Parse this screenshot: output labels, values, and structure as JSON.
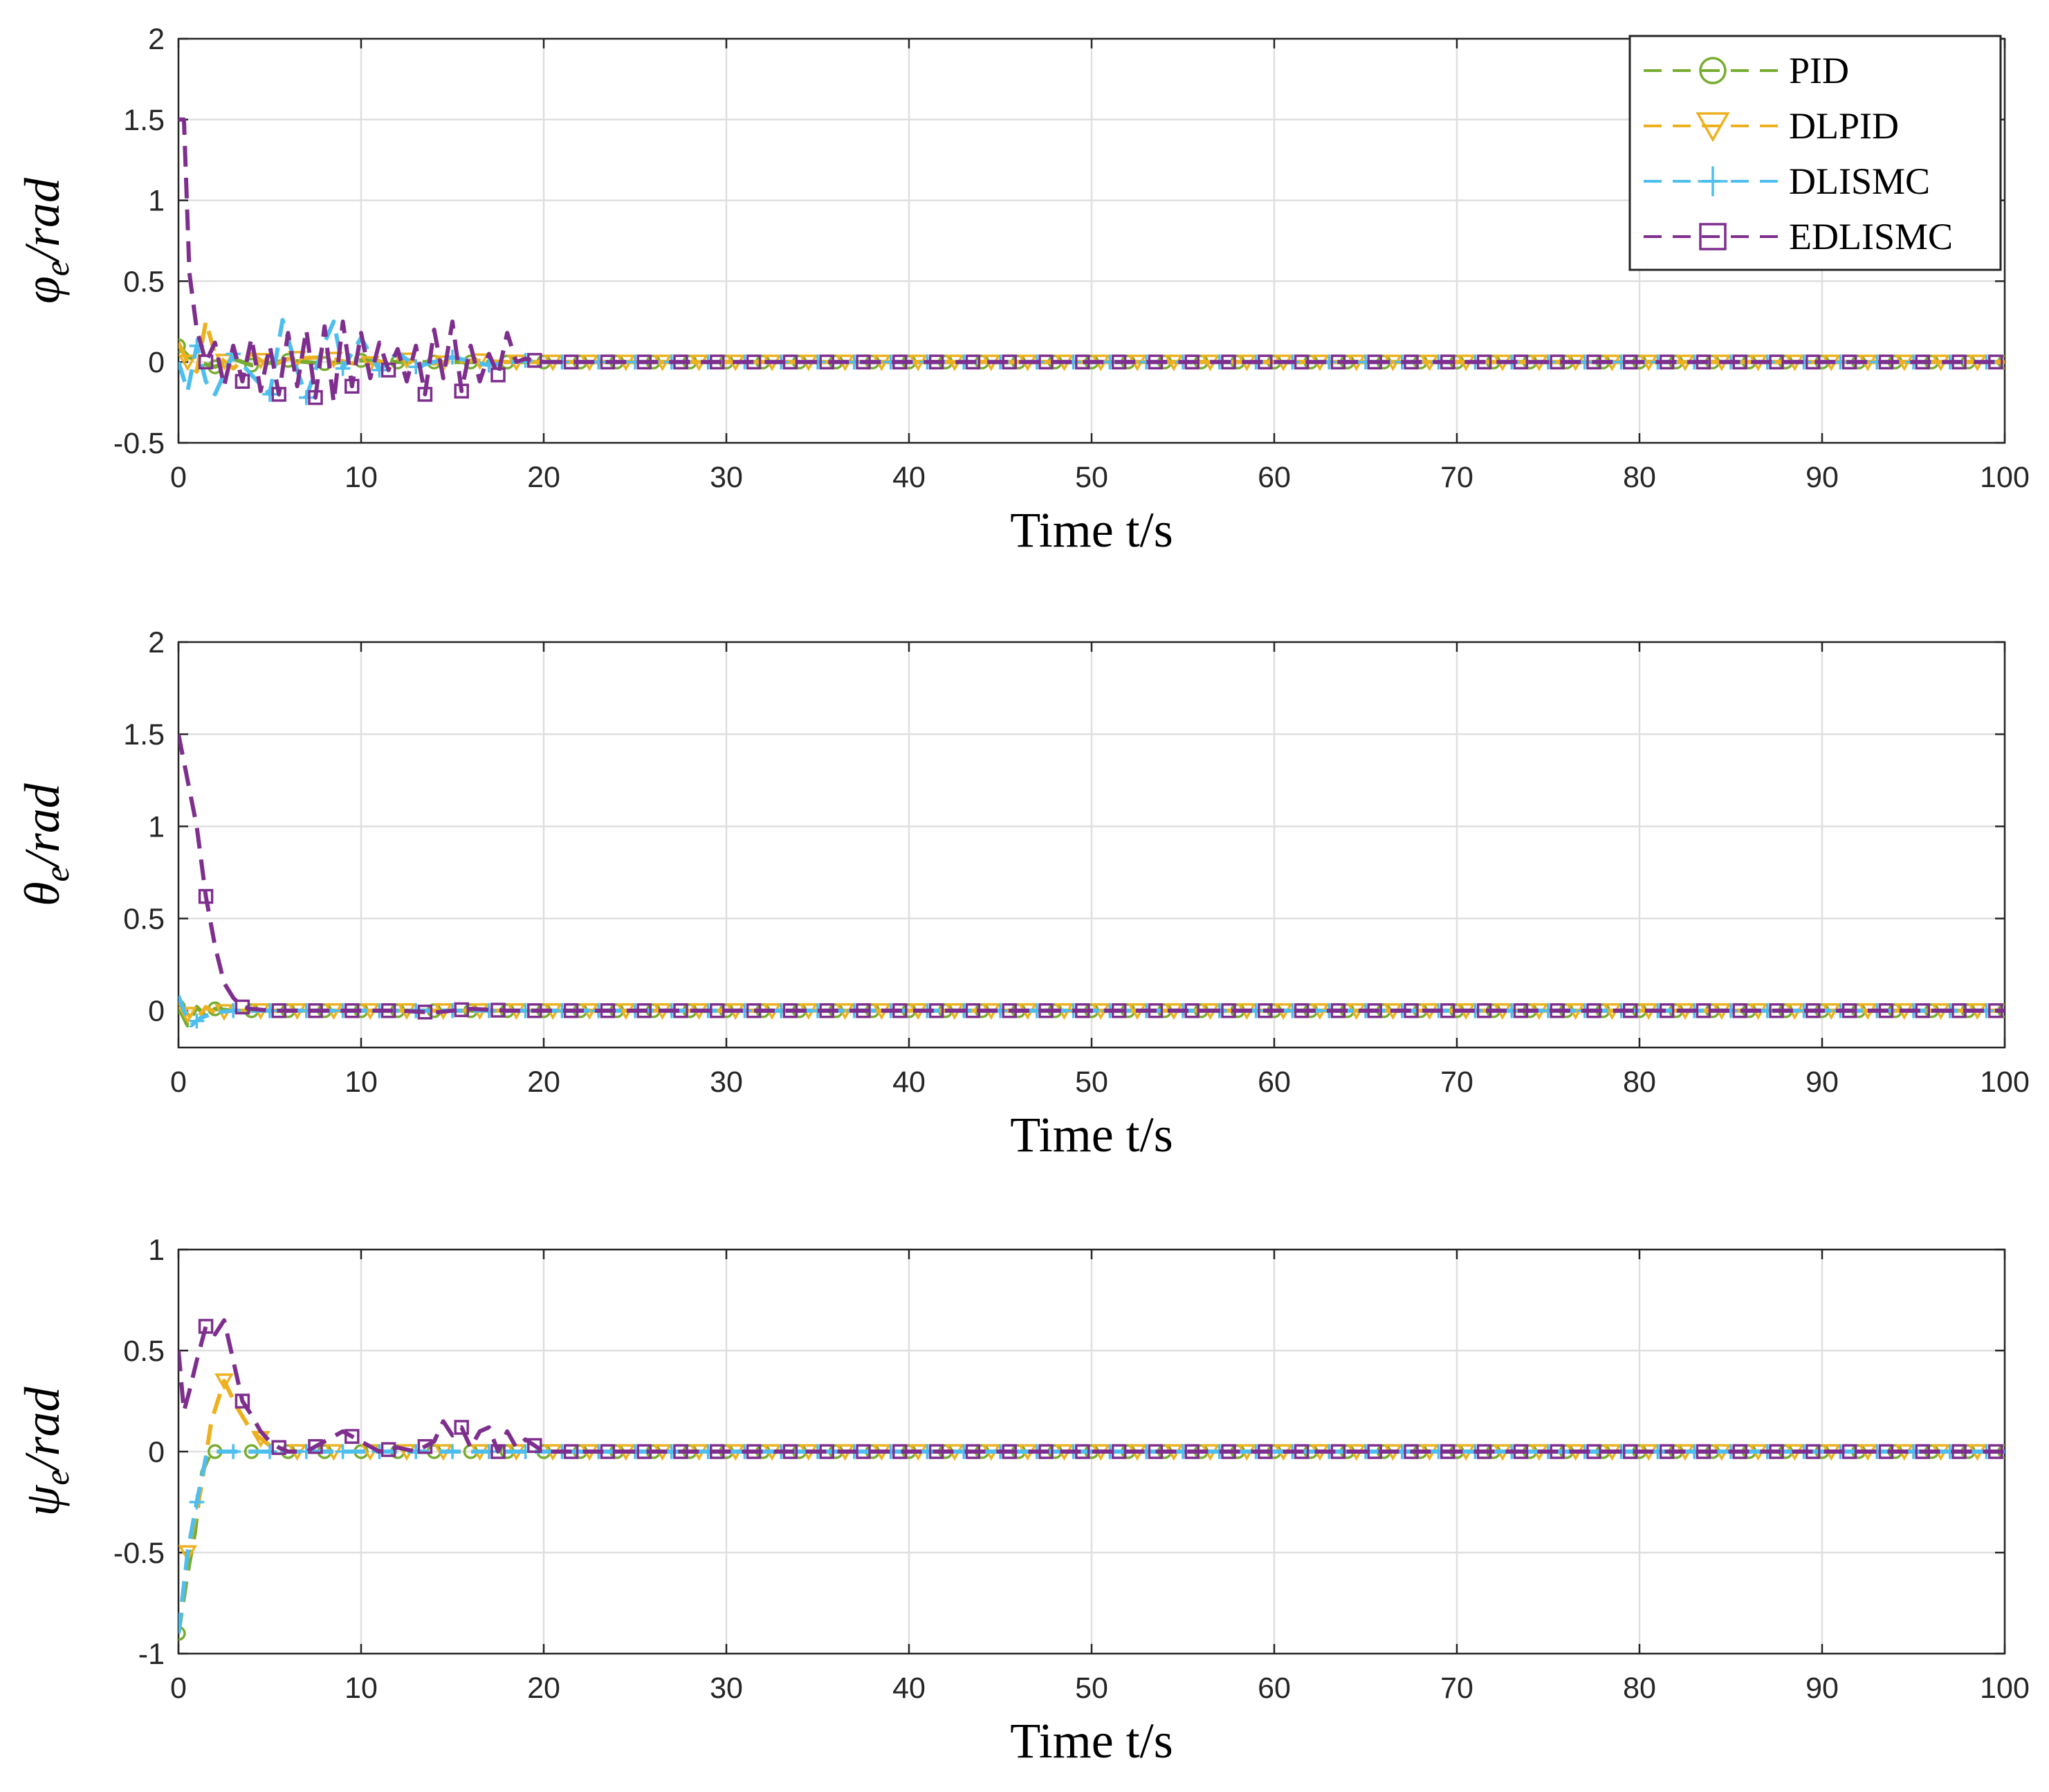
{
  "legend": [
    {
      "name": "PID",
      "color": "#77AC30",
      "marker": "circle"
    },
    {
      "name": "DLPID",
      "color": "#EDB120",
      "marker": "triangle-down"
    },
    {
      "name": "DLISMC",
      "color": "#4DBEEE",
      "marker": "plus"
    },
    {
      "name": "EDLISMC",
      "color": "#7E2F8E",
      "marker": "square"
    }
  ],
  "chart_data": [
    {
      "type": "line",
      "title": "",
      "xlabel": "Time t/s",
      "ylabel": {
        "symbol": "φ",
        "sub": "e",
        "unit": "/rad"
      },
      "xlim": [
        0,
        100
      ],
      "ylim": [
        -0.5,
        2
      ],
      "xticks": [
        "0",
        "10",
        "20",
        "30",
        "40",
        "50",
        "60",
        "70",
        "80",
        "90",
        "100"
      ],
      "yticks": [
        "-0.5",
        "0",
        "0.5",
        "1",
        "1.5",
        "2"
      ],
      "ytick_values": [
        -0.5,
        0,
        0.5,
        1,
        1.5,
        2
      ],
      "grid": true,
      "legend_position": "top-right",
      "series": [
        {
          "name": "PID",
          "x": [
            0,
            0.5,
            1,
            2,
            3,
            4,
            6,
            8,
            10,
            12,
            15,
            18,
            20,
            30,
            50,
            100
          ],
          "y": [
            0.1,
            0.04,
            0.0,
            -0.03,
            0.02,
            -0.02,
            0.01,
            -0.01,
            0.01,
            0.0,
            0.0,
            0.0,
            0.0,
            0.0,
            0.0,
            0.0
          ]
        },
        {
          "name": "DLPID",
          "x": [
            0,
            0.5,
            1,
            1.5,
            2,
            3,
            4,
            5,
            6,
            8,
            10,
            12,
            14,
            16,
            18,
            20,
            30,
            100
          ],
          "y": [
            0.12,
            0.0,
            -0.06,
            0.25,
            0.05,
            -0.04,
            0.05,
            -0.03,
            0.02,
            0.03,
            -0.02,
            0.02,
            -0.01,
            0.01,
            0.0,
            0.0,
            0.0,
            0.0
          ]
        },
        {
          "name": "DLISMC",
          "x": [
            0,
            0.5,
            1,
            1.5,
            2,
            3,
            4,
            5,
            5.7,
            6.5,
            7,
            8,
            8.5,
            9,
            10,
            11,
            12,
            13,
            15,
            17,
            19,
            20,
            30,
            100
          ],
          "y": [
            0.0,
            -0.18,
            0.1,
            -0.12,
            -0.2,
            0.05,
            -0.08,
            -0.2,
            0.26,
            -0.05,
            -0.22,
            0.12,
            0.25,
            -0.04,
            0.15,
            -0.05,
            0.06,
            -0.03,
            0.03,
            -0.02,
            0.01,
            0.0,
            0.0,
            0.0
          ]
        },
        {
          "name": "EDLISMC",
          "x": [
            0,
            0.3,
            0.6,
            1,
            1.5,
            2,
            2.5,
            3,
            3.5,
            4,
            4.5,
            5,
            5.5,
            6,
            6.5,
            7,
            7.5,
            8,
            8.5,
            9,
            9.5,
            10,
            10.5,
            11,
            11.5,
            12,
            12.5,
            13,
            13.5,
            14,
            14.5,
            15,
            15.5,
            16,
            16.5,
            17,
            17.5,
            18,
            18.5,
            19,
            20,
            30,
            100
          ],
          "y": [
            1.5,
            1.5,
            0.55,
            0.2,
            0.0,
            0.12,
            -0.15,
            0.1,
            -0.12,
            0.15,
            -0.18,
            0.1,
            -0.2,
            0.18,
            -0.15,
            0.2,
            -0.22,
            0.22,
            -0.25,
            0.25,
            -0.15,
            0.18,
            -0.1,
            0.12,
            -0.05,
            0.08,
            -0.12,
            0.1,
            -0.2,
            0.2,
            -0.1,
            0.25,
            -0.18,
            0.1,
            -0.12,
            0.05,
            -0.08,
            0.18,
            0.0,
            0.02,
            0.0,
            0.0,
            0.0
          ]
        }
      ]
    },
    {
      "type": "line",
      "title": "",
      "xlabel": "Time t/s",
      "ylabel": {
        "symbol": "θ",
        "sub": "e",
        "unit": "/rad"
      },
      "xlim": [
        0,
        100
      ],
      "ylim": [
        -0.2,
        2
      ],
      "xticks": [
        "0",
        "10",
        "20",
        "30",
        "40",
        "50",
        "60",
        "70",
        "80",
        "90",
        "100"
      ],
      "yticks": [
        "0",
        "0.5",
        "1",
        "1.5",
        "2"
      ],
      "ytick_values": [
        0,
        0.5,
        1,
        1.5,
        2
      ],
      "grid": true,
      "series": [
        {
          "name": "PID",
          "x": [
            0,
            0.5,
            1,
            1.5,
            2,
            3,
            4,
            5,
            100
          ],
          "y": [
            0.02,
            -0.08,
            0.02,
            -0.03,
            0.01,
            0.0,
            0.0,
            0.0,
            0.0
          ]
        },
        {
          "name": "DLPID",
          "x": [
            0,
            0.5,
            1,
            1.5,
            2,
            3,
            4,
            100
          ],
          "y": [
            0.05,
            -0.02,
            -0.05,
            0.02,
            -0.01,
            0.0,
            0.0,
            0.0
          ]
        },
        {
          "name": "DLISMC",
          "x": [
            0,
            0.3,
            0.7,
            1.2,
            2,
            3,
            4,
            100
          ],
          "y": [
            0.08,
            0.0,
            -0.08,
            -0.04,
            -0.01,
            0.0,
            0.0,
            0.0
          ]
        },
        {
          "name": "EDLISMC",
          "x": [
            0,
            0.5,
            1,
            1.5,
            2,
            2.5,
            3,
            3.5,
            4,
            5,
            6,
            8,
            10,
            12,
            14,
            16,
            18,
            20,
            100
          ],
          "y": [
            1.5,
            1.25,
            1.0,
            0.62,
            0.35,
            0.15,
            0.07,
            0.02,
            0.01,
            0.0,
            0.0,
            0.0,
            0.0,
            0.0,
            -0.01,
            0.01,
            0.0,
            0.0,
            0.0
          ]
        }
      ]
    },
    {
      "type": "line",
      "title": "",
      "xlabel": "Time t/s",
      "ylabel": {
        "symbol": "ψ",
        "sub": "e",
        "unit": "/rad"
      },
      "xlim": [
        0,
        100
      ],
      "ylim": [
        -1,
        1
      ],
      "xticks": [
        "0",
        "10",
        "20",
        "30",
        "40",
        "50",
        "60",
        "70",
        "80",
        "90",
        "100"
      ],
      "yticks": [
        "-1",
        "-0.5",
        "0",
        "0.5",
        "1"
      ],
      "ytick_values": [
        -1,
        -0.5,
        0,
        0.5,
        1
      ],
      "grid": true,
      "series": [
        {
          "name": "PID",
          "x": [
            0,
            0.5,
            0.9,
            1.3,
            1.8,
            3,
            5,
            100
          ],
          "y": [
            -0.9,
            -0.6,
            -0.4,
            -0.1,
            0.0,
            0.0,
            0.0,
            0.0
          ]
        },
        {
          "name": "DLPID",
          "x": [
            0,
            0.5,
            1.2,
            1.8,
            2.5,
            3.2,
            4,
            5,
            6,
            7,
            8,
            10,
            100
          ],
          "y": [
            -0.9,
            -0.5,
            -0.2,
            0.15,
            0.35,
            0.22,
            0.1,
            0.03,
            0.0,
            0.0,
            0.0,
            0.0,
            0.0
          ]
        },
        {
          "name": "DLISMC",
          "x": [
            0,
            0.5,
            1,
            1.5,
            2,
            3,
            100
          ],
          "y": [
            -0.9,
            -0.5,
            -0.25,
            -0.03,
            0.0,
            0.0,
            0.0
          ]
        },
        {
          "name": "EDLISMC",
          "x": [
            0,
            0.3,
            0.6,
            1,
            1.5,
            2,
            2.5,
            3,
            3.5,
            4,
            4.5,
            5,
            5.5,
            6,
            7,
            8,
            9,
            10,
            11,
            12,
            13,
            14,
            14.5,
            15,
            15.5,
            16,
            16.5,
            17,
            17.5,
            18,
            18.5,
            19,
            20,
            100
          ],
          "y": [
            0.5,
            0.2,
            0.3,
            0.45,
            0.62,
            0.58,
            0.65,
            0.45,
            0.25,
            0.18,
            0.1,
            0.05,
            0.02,
            0.0,
            0.0,
            0.05,
            0.1,
            0.05,
            0.0,
            0.02,
            0.0,
            0.05,
            0.15,
            0.08,
            0.12,
            0.02,
            0.1,
            0.12,
            0.0,
            0.1,
            0.02,
            0.06,
            0.0,
            0.0
          ]
        }
      ]
    }
  ]
}
